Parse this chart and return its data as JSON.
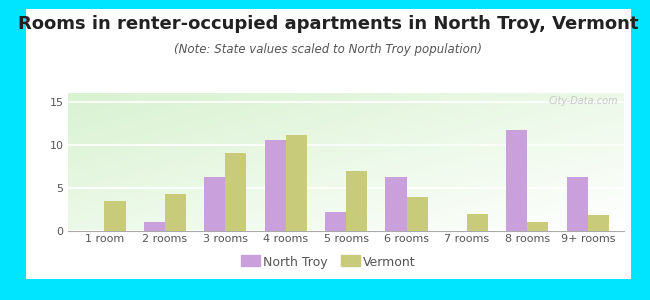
{
  "title": "Rooms in renter-occupied apartments in North Troy, Vermont",
  "subtitle": "(Note: State values scaled to North Troy population)",
  "categories": [
    "1 room",
    "2 rooms",
    "3 rooms",
    "4 rooms",
    "5 rooms",
    "6 rooms",
    "7 rooms",
    "8 rooms",
    "9+ rooms"
  ],
  "north_troy": [
    0,
    1,
    6.3,
    10.5,
    2.2,
    6.3,
    0,
    11.7,
    6.3
  ],
  "vermont": [
    3.5,
    4.3,
    9.0,
    11.1,
    7.0,
    4.0,
    2.0,
    1.0,
    1.8
  ],
  "north_troy_color": "#c9a0dc",
  "vermont_color": "#c8cc7a",
  "background_outer": "#00e5ff",
  "background_plot_top": "#f5f9f0",
  "background_plot_bottom": "#d0e8c0",
  "ylim": [
    0,
    16
  ],
  "yticks": [
    0,
    5,
    10,
    15
  ],
  "bar_width": 0.35,
  "title_fontsize": 13,
  "subtitle_fontsize": 8.5,
  "tick_fontsize": 8,
  "legend_fontsize": 9,
  "watermark": "City-Data.com"
}
